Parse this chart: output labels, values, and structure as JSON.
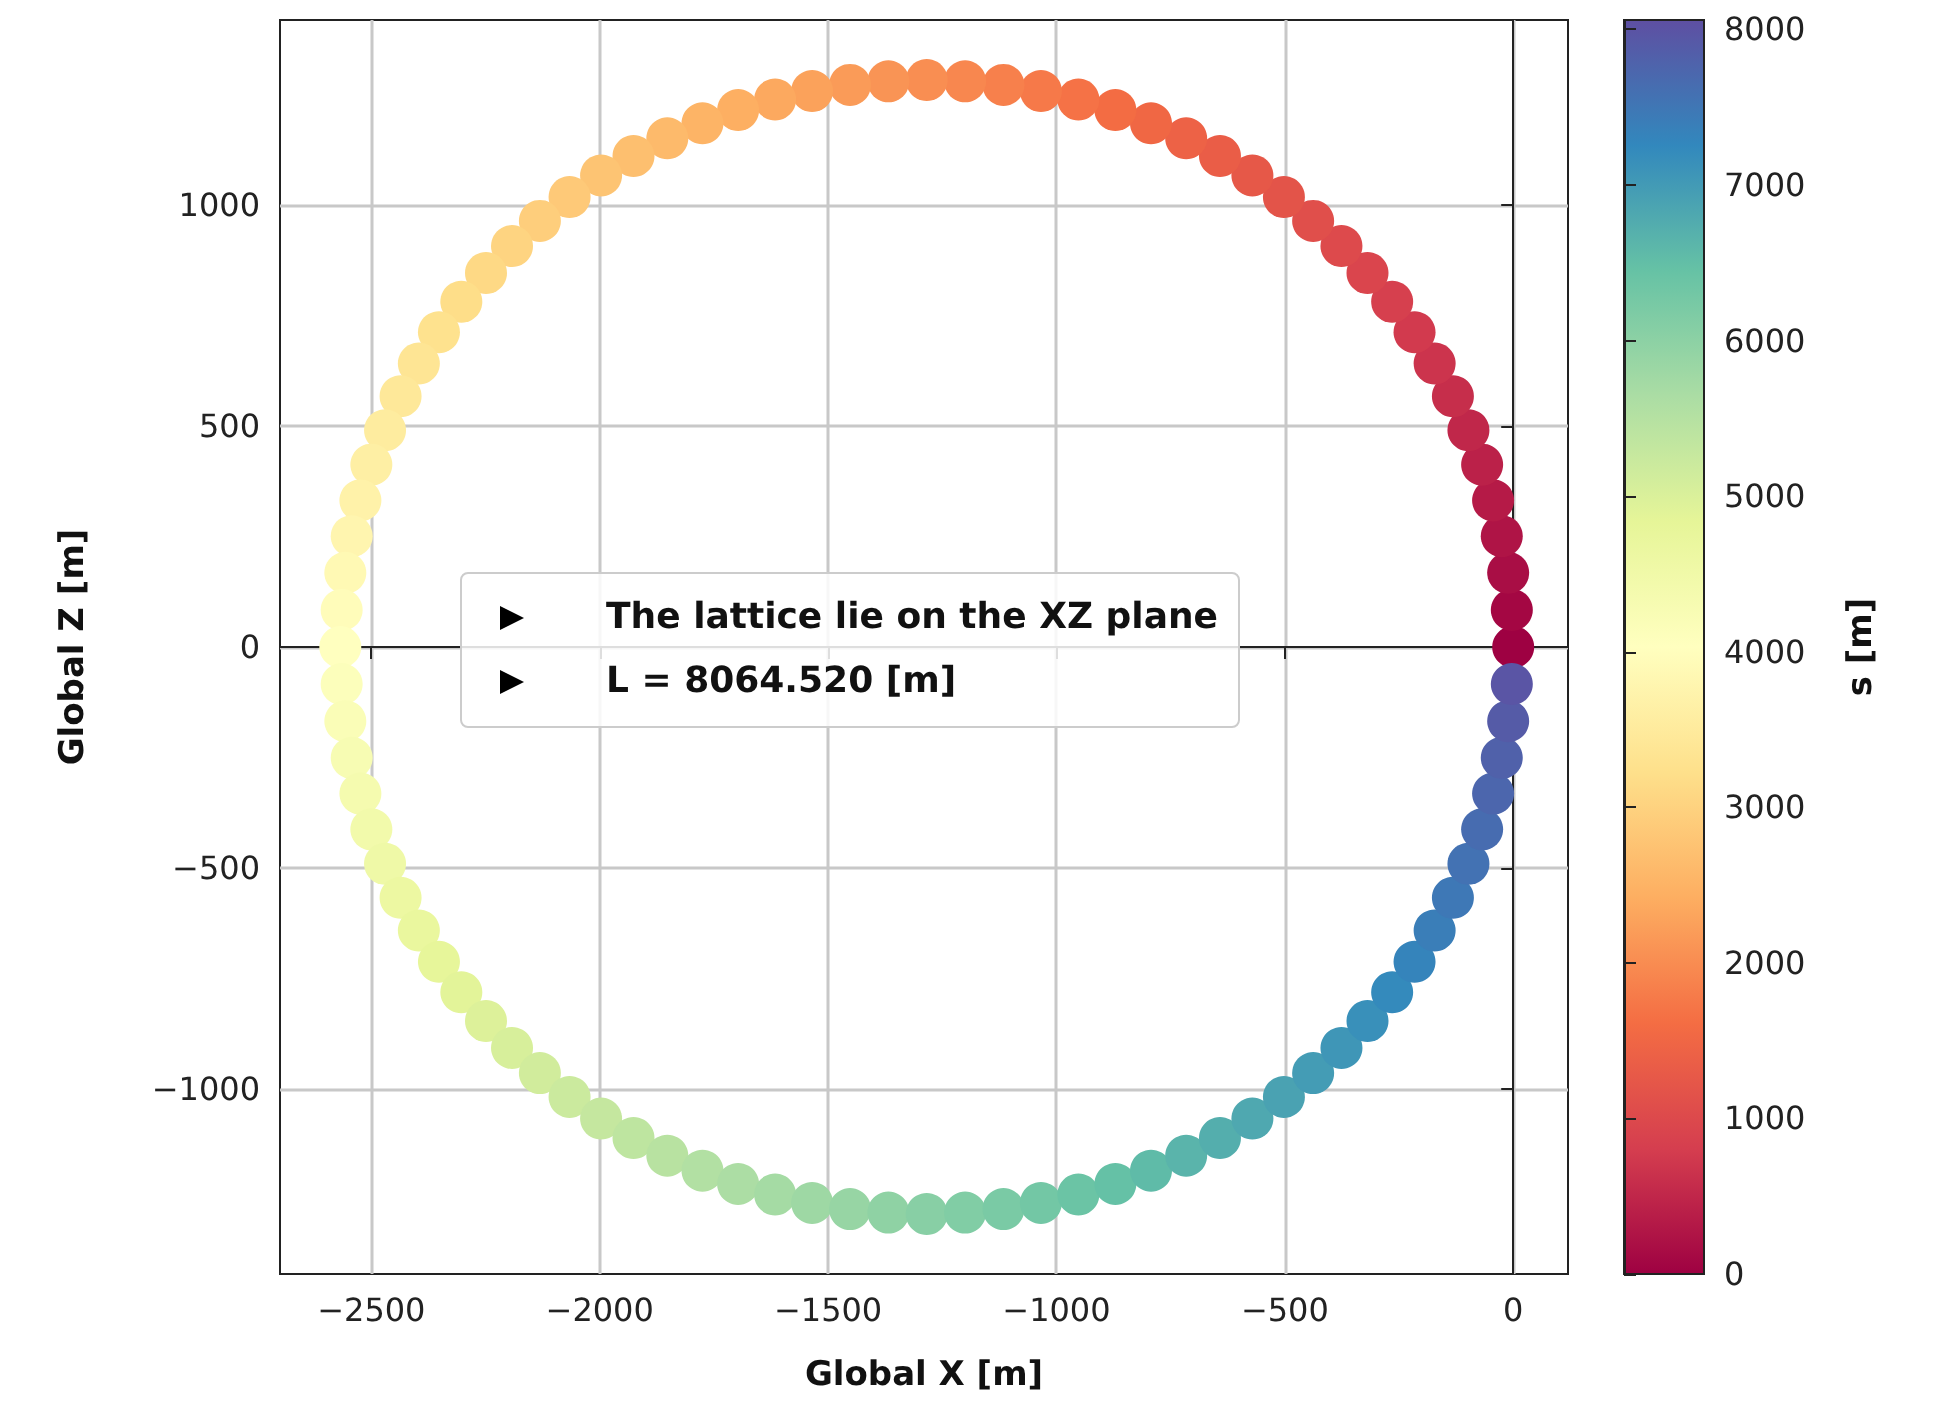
{
  "chart_data": {
    "type": "scatter",
    "xlabel": "Global X [m]",
    "ylabel": "Global Z [m]",
    "clabel": "s [m]",
    "annotations": [
      "The lattice lie on the XZ plane",
      "L = 8064.520 [m]"
    ],
    "xlim": [
      -2700,
      120
    ],
    "xticks": [
      -2500,
      -2000,
      -1500,
      -1000,
      -500,
      0
    ],
    "ylim": [
      -1420,
      1420
    ],
    "yticks": [
      -1000,
      -500,
      0,
      500,
      1000
    ],
    "clim": [
      0,
      8060
    ],
    "cticks": [
      0,
      1000,
      2000,
      3000,
      4000,
      5000,
      6000,
      7000,
      8000
    ],
    "grid": true,
    "marker": "circle",
    "x": [
      0,
      -3,
      -11,
      -25,
      -44,
      -68,
      -98,
      -132,
      -172,
      -216,
      -265,
      -319,
      -376,
      -438,
      -502,
      -571,
      -642,
      -716,
      -793,
      -871,
      -952,
      -1034,
      -1116,
      -1200,
      -1284,
      -1368,
      -1452,
      -1535,
      -1616,
      -1697,
      -1775,
      -1852,
      -1926,
      -1997,
      -2066,
      -2131,
      -2192,
      -2249,
      -2303,
      -2352,
      -2396,
      -2436,
      -2470,
      -2500,
      -2524,
      -2543,
      -2557,
      -2565,
      -2568,
      -2565,
      -2557,
      -2543,
      -2524,
      -2500,
      -2470,
      -2436,
      -2396,
      -2352,
      -2303,
      -2249,
      -2192,
      -2131,
      -2066,
      -1997,
      -1926,
      -1852,
      -1775,
      -1697,
      -1616,
      -1535,
      -1452,
      -1368,
      -1284,
      -1200,
      -1116,
      -1034,
      -952,
      -871,
      -793,
      -716,
      -642,
      -571,
      -502,
      -438,
      -376,
      -319,
      -265,
      -216,
      -172,
      -132,
      -98,
      -68,
      -44,
      -25,
      -11,
      -3
    ],
    "values": [
      0,
      84,
      168,
      251,
      332,
      413,
      491,
      568,
      642,
      713,
      782,
      847,
      908,
      965,
      1019,
      1068,
      1112,
      1152,
      1186,
      1216,
      1240,
      1259,
      1273,
      1281,
      1284,
      1281,
      1273,
      1259,
      1240,
      1216,
      1186,
      1152,
      1112,
      1068,
      1019,
      965,
      908,
      847,
      782,
      713,
      642,
      568,
      491,
      413,
      332,
      251,
      168,
      84,
      0,
      -84,
      -168,
      -251,
      -332,
      -413,
      -491,
      -568,
      -642,
      -713,
      -782,
      -847,
      -908,
      -965,
      -1019,
      -1068,
      -1112,
      -1152,
      -1186,
      -1216,
      -1240,
      -1259,
      -1273,
      -1281,
      -1284,
      -1281,
      -1273,
      -1259,
      -1240,
      -1216,
      -1186,
      -1152,
      -1112,
      -1068,
      -1019,
      -965,
      -908,
      -847,
      -782,
      -713,
      -642,
      -568,
      -491,
      -413,
      -332,
      -251,
      -168,
      -84
    ],
    "cvalues": [
      0,
      84,
      168,
      252,
      336,
      420,
      504,
      588,
      672,
      756,
      840,
      924,
      1008,
      1092,
      1176,
      1260,
      1344,
      1428,
      1512,
      1596,
      1680,
      1764,
      1848,
      1932,
      2016,
      2100,
      2184,
      2268,
      2352,
      2436,
      2520,
      2604,
      2688,
      2772,
      2856,
      2940,
      3024,
      3108,
      3192,
      3276,
      3360,
      3444,
      3528,
      3612,
      3696,
      3780,
      3864,
      3948,
      4032,
      4116,
      4200,
      4284,
      4368,
      4452,
      4536,
      4620,
      4704,
      4788,
      4872,
      4956,
      5040,
      5124,
      5208,
      5292,
      5376,
      5460,
      5544,
      5628,
      5712,
      5796,
      5880,
      5964,
      6048,
      6132,
      6216,
      6300,
      6384,
      6468,
      6552,
      6636,
      6720,
      6804,
      6888,
      6972,
      7056,
      7140,
      7224,
      7308,
      7392,
      7476,
      7560,
      7644,
      7728,
      7812,
      7896,
      7980
    ]
  }
}
